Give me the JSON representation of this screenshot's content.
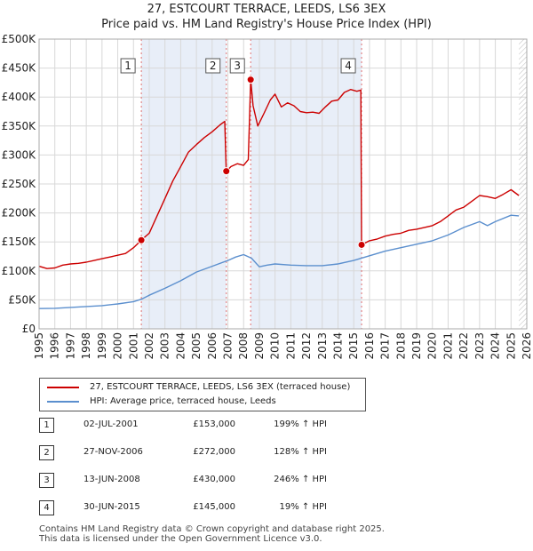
{
  "chart_data": {
    "type": "line",
    "title": "27, ESTCOURT TERRACE, LEEDS, LS6 3EX",
    "subtitle": "Price paid vs. HM Land Registry's House Price Index (HPI)",
    "xlim": [
      1995,
      2026
    ],
    "ylim": [
      0,
      500000
    ],
    "x_ticks": [
      "1995",
      "1996",
      "1997",
      "1998",
      "1999",
      "2000",
      "2001",
      "2002",
      "2003",
      "2004",
      "2005",
      "2006",
      "2007",
      "2008",
      "2009",
      "2010",
      "2011",
      "2012",
      "2013",
      "2014",
      "2015",
      "2016",
      "2017",
      "2018",
      "2019",
      "2020",
      "2021",
      "2022",
      "2023",
      "2024",
      "2025",
      "2026"
    ],
    "y_ticks": [
      {
        "value": 0,
        "label": "£0"
      },
      {
        "value": 50000,
        "label": "£50K"
      },
      {
        "value": 100000,
        "label": "£100K"
      },
      {
        "value": 150000,
        "label": "£150K"
      },
      {
        "value": 200000,
        "label": "£200K"
      },
      {
        "value": 250000,
        "label": "£250K"
      },
      {
        "value": 300000,
        "label": "£300K"
      },
      {
        "value": 350000,
        "label": "£350K"
      },
      {
        "value": 400000,
        "label": "£400K"
      },
      {
        "value": 450000,
        "label": "£450K"
      },
      {
        "value": 500000,
        "label": "£500K"
      }
    ],
    "shaded_periods": [
      [
        2001.5,
        2006.9
      ],
      [
        2008.45,
        2015.5
      ]
    ],
    "hatched_from": 2025.5,
    "series": [
      {
        "name": "27, ESTCOURT TERRACE, LEEDS, LS6 3EX (terraced house)",
        "color": "#cc0000",
        "x": [
          1995.0,
          1995.5,
          1996.0,
          1996.5,
          1997.0,
          1997.5,
          1998.0,
          1998.5,
          1999.0,
          1999.5,
          2000.0,
          2000.5,
          2001.0,
          2001.5,
          2002.0,
          2002.5,
          2003.0,
          2003.5,
          2004.0,
          2004.5,
          2005.0,
          2005.5,
          2006.0,
          2006.5,
          2006.8,
          2006.9,
          2007.2,
          2007.6,
          2008.0,
          2008.3,
          2008.45,
          2008.6,
          2008.9,
          2009.3,
          2009.7,
          2010.0,
          2010.4,
          2010.8,
          2011.2,
          2011.6,
          2012.0,
          2012.4,
          2012.8,
          2013.2,
          2013.6,
          2014.0,
          2014.4,
          2014.8,
          2015.2,
          2015.45,
          2015.5,
          2016.0,
          2016.5,
          2017.0,
          2017.5,
          2018.0,
          2018.5,
          2019.0,
          2019.5,
          2020.0,
          2020.5,
          2021.0,
          2021.5,
          2022.0,
          2022.5,
          2023.0,
          2023.5,
          2024.0,
          2024.5,
          2025.0,
          2025.5
        ],
        "y": [
          108000,
          104000,
          105000,
          110000,
          112000,
          113000,
          115000,
          118000,
          121000,
          124000,
          127000,
          130000,
          140000,
          153000,
          165000,
          195000,
          225000,
          255000,
          280000,
          305000,
          318000,
          330000,
          340000,
          352000,
          358000,
          272000,
          280000,
          285000,
          282000,
          292000,
          430000,
          385000,
          350000,
          372000,
          395000,
          405000,
          383000,
          390000,
          385000,
          375000,
          373000,
          374000,
          372000,
          383000,
          393000,
          395000,
          408000,
          413000,
          410000,
          412000,
          145000,
          152000,
          155000,
          160000,
          163000,
          165000,
          170000,
          172000,
          175000,
          178000,
          185000,
          195000,
          205000,
          210000,
          220000,
          230000,
          228000,
          225000,
          232000,
          240000,
          230000
        ]
      },
      {
        "name": "HPI: Average price, terraced house, Leeds",
        "color": "#5b8fce",
        "x": [
          1995,
          1996,
          1997,
          1998,
          1999,
          2000,
          2001,
          2001.5,
          2002,
          2003,
          2004,
          2005,
          2006,
          2007,
          2007.5,
          2008,
          2008.5,
          2009,
          2009.5,
          2010,
          2011,
          2012,
          2013,
          2014,
          2015,
          2016,
          2017,
          2018,
          2019,
          2020,
          2021,
          2022,
          2023,
          2023.5,
          2024,
          2025,
          2025.5
        ],
        "y": [
          35000,
          35500,
          37000,
          38500,
          40000,
          43000,
          47000,
          51000,
          58000,
          70000,
          83000,
          98000,
          108000,
          118000,
          124000,
          128000,
          122000,
          107000,
          110000,
          112000,
          110000,
          109000,
          109000,
          112000,
          118000,
          126000,
          134000,
          140000,
          146000,
          152000,
          162000,
          175000,
          185000,
          178000,
          185000,
          196000,
          195000
        ]
      }
    ],
    "sales": [
      {
        "label": "1",
        "date": "02-JUL-2001",
        "x": 2001.5,
        "price": 153000,
        "price_text": "£153,000",
        "hpi": "199% ↑ HPI"
      },
      {
        "label": "2",
        "date": "27-NOV-2006",
        "x": 2006.9,
        "price": 272000,
        "price_text": "£272,000",
        "hpi": "128% ↑ HPI"
      },
      {
        "label": "3",
        "date": "13-JUN-2008",
        "x": 2008.45,
        "price": 430000,
        "price_text": "£430,000",
        "hpi": "246% ↑ HPI"
      },
      {
        "label": "4",
        "date": "30-JUN-2015",
        "x": 2015.5,
        "price": 145000,
        "price_text": "£145,000",
        "hpi": "19% ↑ HPI"
      }
    ]
  },
  "legend": {
    "property_label": "27, ESTCOURT TERRACE, LEEDS, LS6 3EX (terraced house)",
    "hpi_label": "HPI: Average price, terraced house, Leeds"
  },
  "footer": {
    "line1": "Contains HM Land Registry data © Crown copyright and database right 2025.",
    "line2": "This data is licensed under the Open Government Licence v3.0."
  },
  "colors": {
    "property": "#cc0000",
    "hpi": "#5b8fce",
    "shade": "#e8eef8",
    "grid": "#d8d8d8"
  }
}
